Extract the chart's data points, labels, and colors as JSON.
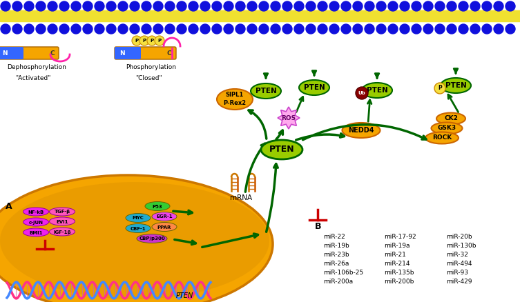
{
  "bg_color": "#ffffff",
  "mir_col1": [
    "miR-22",
    "miR-19b",
    "miR-23b",
    "miR-26a",
    "miR-106b-25",
    "miR-200a"
  ],
  "mir_col2": [
    "miR-17-92",
    "miR-19a",
    "miR-21",
    "miR-214",
    "miR-135b",
    "miR-200b"
  ],
  "mir_col3": [
    "miR-20b",
    "miR-130b",
    "miR-32",
    "miR-494",
    "miR-93",
    "miR-429"
  ]
}
